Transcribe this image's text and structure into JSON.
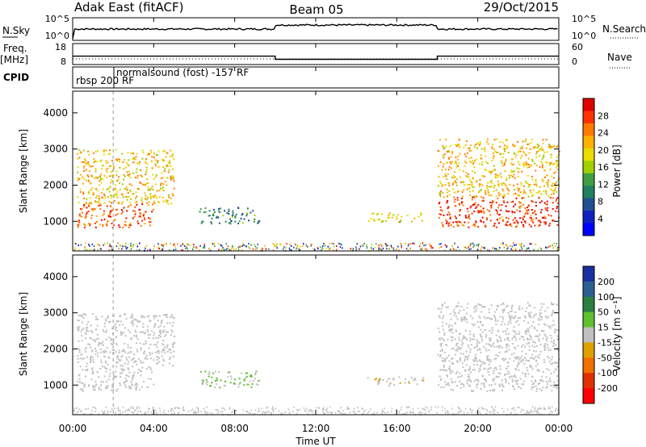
{
  "header": {
    "left": "Adak East (fitACF)",
    "center": "Beam 05",
    "right": "29/Oct/2015"
  },
  "panels": {
    "nsky": {
      "label": "N.Sky",
      "ticks": [
        "10^5",
        "10^0"
      ],
      "right_ticks": [
        "10^5",
        "10^0"
      ],
      "right_label": "N.Search"
    },
    "freq": {
      "label_line1": "Freq.",
      "label_line2": "[MHz]",
      "ticks": [
        "18",
        "8"
      ],
      "right_ticks": [
        "60",
        "0"
      ],
      "right_label": "Nave"
    },
    "cpid": {
      "label": "CPID",
      "mode1": "rbsp 200 RF",
      "mode2": "normalsound (fost) -157 RF"
    }
  },
  "power_panel": {
    "ylabel": "Slant Range [km]",
    "yticks": [
      "4000",
      "3000",
      "2000",
      "1000"
    ],
    "cbar_label": "Power [dB]",
    "cbar_ticks": [
      "28",
      "24",
      "20",
      "16",
      "12",
      "8",
      "4"
    ],
    "cbar_colors": [
      "#e00000",
      "#ff3000",
      "#ff7a00",
      "#ffb000",
      "#e8dc00",
      "#a0d000",
      "#40a040",
      "#208060",
      "#205090",
      "#1020c0",
      "#0000ff"
    ]
  },
  "velocity_panel": {
    "ylabel": "Slant Range [km]",
    "yticks": [
      "4000",
      "3000",
      "2000",
      "1000"
    ],
    "cbar_label": "Velocity [m s⁻¹]",
    "cbar_ticks": [
      "200",
      "100",
      "50",
      "15",
      "-15",
      "-50",
      "-100",
      "-200"
    ],
    "cbar_colors": [
      "#1a2fa0",
      "#2a6090",
      "#2a8040",
      "#60c030",
      "#c0c0c0",
      "#e0a000",
      "#f07000",
      "#e03000",
      "#ff0000"
    ]
  },
  "xaxis": {
    "label": "Time UT",
    "ticks": [
      "00:00",
      "04:00",
      "08:00",
      "12:00",
      "16:00",
      "20:00",
      "00:00"
    ]
  },
  "chart_data": {
    "type": "heatmap",
    "title": "Adak East (fitACF) Beam 05 29/Oct/2015",
    "xlabel": "Time UT",
    "ylabel": "Slant Range [km]",
    "xlim_hours": [
      0,
      24
    ],
    "ylim_km": [
      180,
      4600
    ],
    "power_cbar_range_db": [
      0,
      30
    ],
    "velocity_cbar_range": [
      -250,
      250
    ],
    "freq_steps_mhz": [
      {
        "start_h": 0,
        "end_h": 10,
        "value": 12
      },
      {
        "start_h": 10,
        "end_h": 18,
        "value": 10.5
      },
      {
        "start_h": 18,
        "end_h": 24,
        "value": 12
      }
    ],
    "cpid_modes": [
      {
        "name": "rbsp 200 RF",
        "start_h": 0,
        "end_h": 2
      },
      {
        "name": "normalsound (fost) -157 RF",
        "start_h": 2,
        "end_h": 24
      }
    ],
    "scatter_regions": [
      {
        "t": [
          0.2,
          4.0
        ],
        "r": [
          850,
          1500
        ],
        "power": 26,
        "vel": -5
      },
      {
        "t": [
          0.2,
          5.0
        ],
        "r": [
          1500,
          3000
        ],
        "power": 20,
        "vel": -5
      },
      {
        "t": [
          6.2,
          9.2
        ],
        "r": [
          950,
          1400
        ],
        "power": 9,
        "vel": 30
      },
      {
        "t": [
          14.5,
          17.3
        ],
        "r": [
          1000,
          1250
        ],
        "power": 17,
        "vel": -20
      },
      {
        "t": [
          18.0,
          24.0
        ],
        "r": [
          850,
          1700
        ],
        "power": 27,
        "vel": -5
      },
      {
        "t": [
          18.0,
          24.0
        ],
        "r": [
          1700,
          3300
        ],
        "power": 20,
        "vel": -5
      }
    ]
  }
}
